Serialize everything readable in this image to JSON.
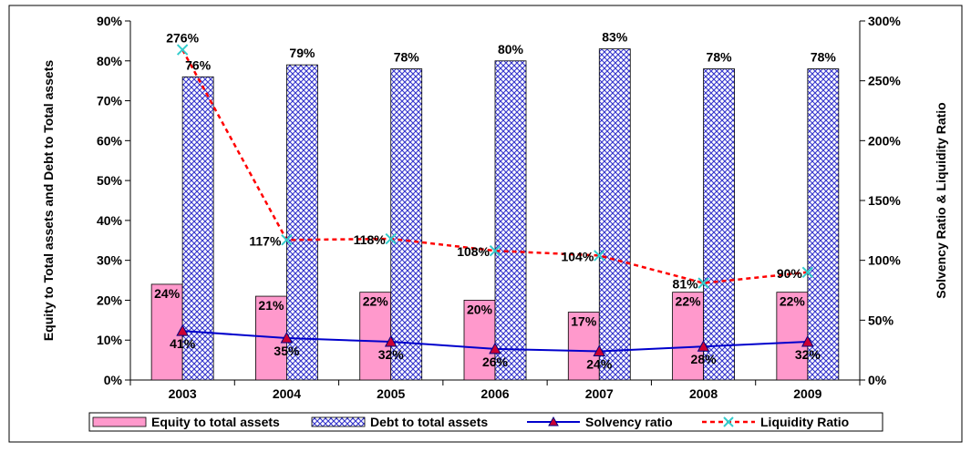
{
  "chart_data": {
    "type": "bar",
    "categories": [
      "2003",
      "2004",
      "2005",
      "2006",
      "2007",
      "2008",
      "2009"
    ],
    "series": [
      {
        "name": "Equity to total assets",
        "kind": "bar",
        "axis": "left",
        "values": [
          24,
          21,
          22,
          20,
          17,
          22,
          22
        ],
        "labels": [
          "24%",
          "21%",
          "22%",
          "20%",
          "17%",
          "22%",
          "22%"
        ],
        "color": "#ff99cc"
      },
      {
        "name": "Debt to total assets",
        "kind": "bar",
        "axis": "left",
        "values": [
          76,
          79,
          78,
          80,
          83,
          78,
          78
        ],
        "labels": [
          "76%",
          "79%",
          "78%",
          "80%",
          "83%",
          "78%",
          "78%"
        ],
        "color": "#3333cc"
      },
      {
        "name": "Solvency ratio",
        "kind": "line",
        "axis": "right",
        "values": [
          41,
          35,
          32,
          26,
          24,
          28,
          32
        ],
        "labels": [
          "41%",
          "35%",
          "32%",
          "26%",
          "24%",
          "28%",
          "32%"
        ],
        "color": "#0000cc",
        "marker_color": "#cc0033"
      },
      {
        "name": "Liquidity Ratio",
        "kind": "line",
        "axis": "right",
        "values": [
          276,
          117,
          118,
          108,
          104,
          81,
          90
        ],
        "labels": [
          "276%",
          "117%",
          "118%",
          "108%",
          "104%",
          "81%",
          "90%"
        ],
        "color": "#ff0000",
        "marker_color": "#33cccc"
      }
    ],
    "ylabel": "Equity to Total assets and Debt to Total assets",
    "y2label": "Solvency Ratio & Liquidity Ratio",
    "ylim": [
      0,
      90
    ],
    "yticks": [
      "0%",
      "10%",
      "20%",
      "30%",
      "40%",
      "50%",
      "60%",
      "70%",
      "80%",
      "90%"
    ],
    "y2lim": [
      0,
      300
    ],
    "y2ticks": [
      "0%",
      "50%",
      "100%",
      "150%",
      "200%",
      "250%",
      "300%"
    ],
    "grid": false,
    "legend_position": "bottom"
  }
}
